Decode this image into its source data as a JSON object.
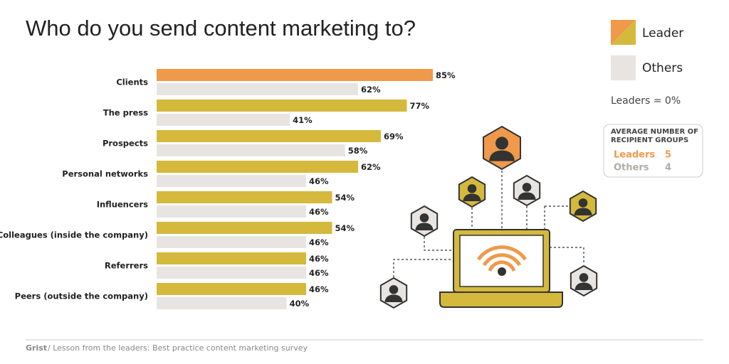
{
  "chart_data": {
    "type": "bar",
    "orientation": "horizontal",
    "title": "Who do you send content marketing to?",
    "categories": [
      "Clients",
      "The press",
      "Prospects",
      "Personal networks",
      "Influencers",
      "Colleagues (inside the company)",
      "Referrers",
      "Peers (outside the company)"
    ],
    "series": [
      {
        "name": "Leader",
        "color": "#d4b93c",
        "colors": [
          "#f0994a",
          "#d4b93c",
          "#d4b93c",
          "#d4b93c",
          "#d4b93c",
          "#d4b93c",
          "#d4b93c",
          "#d4b93c"
        ],
        "values": [
          85,
          77,
          69,
          62,
          54,
          54,
          46,
          46
        ],
        "value_labels": [
          "85%",
          "77%",
          "69%",
          "62%",
          "54%",
          "54%",
          "46%",
          "46%"
        ]
      },
      {
        "name": "Others",
        "color": "#e8e4e1",
        "values": [
          62,
          41,
          58,
          46,
          46,
          46,
          46,
          40
        ],
        "value_labels": [
          "62%",
          "41%",
          "58%",
          "46%",
          "46%",
          "46%",
          "46%",
          "40%"
        ]
      }
    ],
    "legend": "top-right",
    "note": "Leaders = 0%"
  },
  "stats_box": {
    "title": "AVERAGE NUMBER OF RECIPIENT GROUPS",
    "rows": [
      {
        "label": "Leaders",
        "value": 5,
        "color": "#f0994a"
      },
      {
        "label": "Others",
        "value": 4,
        "color": "#b0aca8"
      }
    ]
  },
  "footer": {
    "source": "Grist",
    "text": "/ Lesson from the leaders: Best practice content marketing survey"
  }
}
